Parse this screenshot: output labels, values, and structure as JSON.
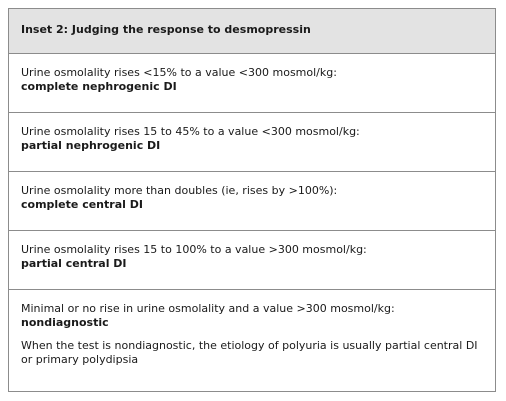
{
  "header": {
    "title": "Inset 2: Judging the response to desmopressin"
  },
  "table": {
    "rows": [
      {
        "text": "Urine osmolality rises <15% to a value <300 mosmol/kg:",
        "result": "complete nephrogenic DI"
      },
      {
        "text": "Urine osmolality rises 15 to 45% to a value <300 mosmol/kg:",
        "result": "partial nephrogenic DI"
      },
      {
        "text": "Urine osmolality more than doubles (ie, rises by >100%):",
        "result": "complete central DI"
      },
      {
        "text": "Urine osmolality rises 15 to 100% to a value >300 mosmol/kg:",
        "result": "partial central DI"
      },
      {
        "text": "Minimal or no rise in urine osmolality and a value >300 mosmol/kg:",
        "result": "nondiagnostic"
      }
    ],
    "note": "When the test is nondiagnostic, the etiology of polyuria is usually partial central DI or primary polydipsia"
  }
}
